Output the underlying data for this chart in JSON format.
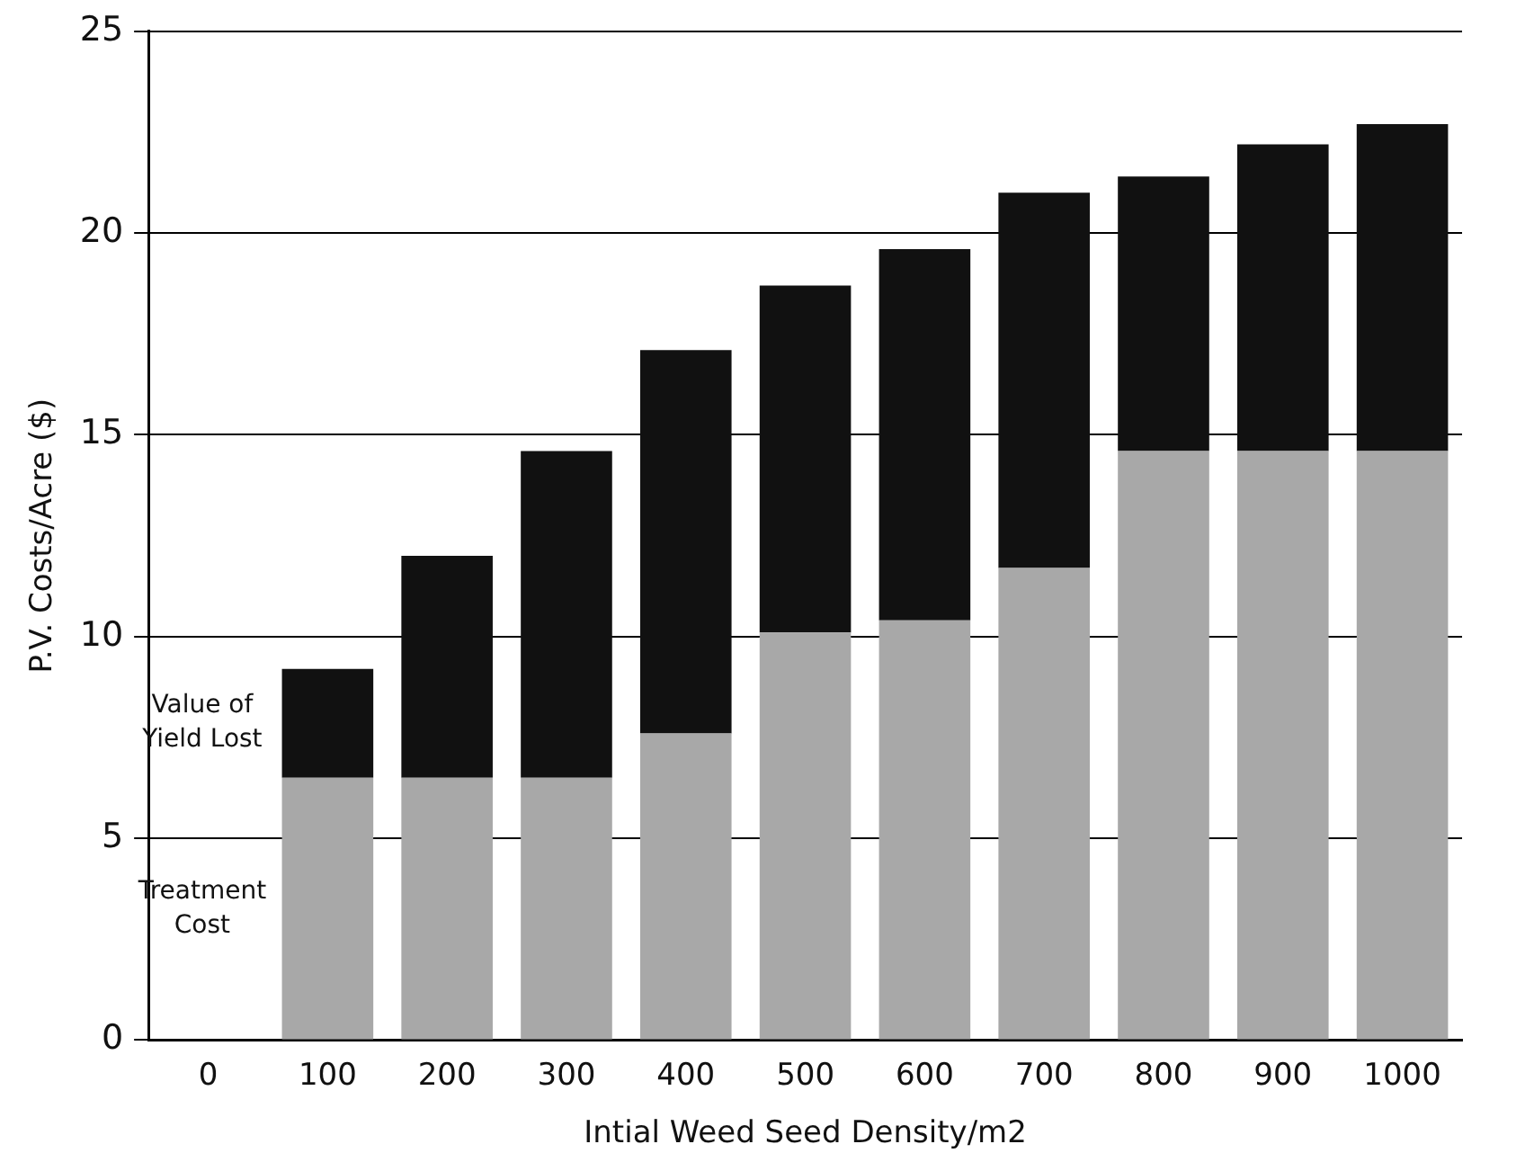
{
  "chart_data": {
    "type": "bar",
    "stacked": true,
    "xlabel": "Intial Weed Seed Density/m2",
    "ylabel": "P.V. Costs/Acre ($)",
    "categories": [
      "0",
      "100",
      "200",
      "300",
      "400",
      "500",
      "600",
      "700",
      "800",
      "900",
      "1000"
    ],
    "series": [
      {
        "name": "Treatment Cost",
        "color": "#a8a8a8",
        "values": [
          null,
          6.5,
          6.5,
          6.5,
          7.6,
          10.1,
          10.4,
          11.7,
          14.6,
          14.6,
          14.6
        ]
      },
      {
        "name": "Value of Yield Lost",
        "color": "#111111",
        "values": [
          null,
          2.7,
          5.5,
          8.1,
          9.5,
          8.6,
          9.2,
          9.3,
          6.8,
          7.6,
          8.1
        ]
      }
    ],
    "ylim": [
      0,
      25
    ],
    "yticks": [
      0,
      5,
      10,
      15,
      20,
      25
    ],
    "grid": "y",
    "legend": false
  }
}
